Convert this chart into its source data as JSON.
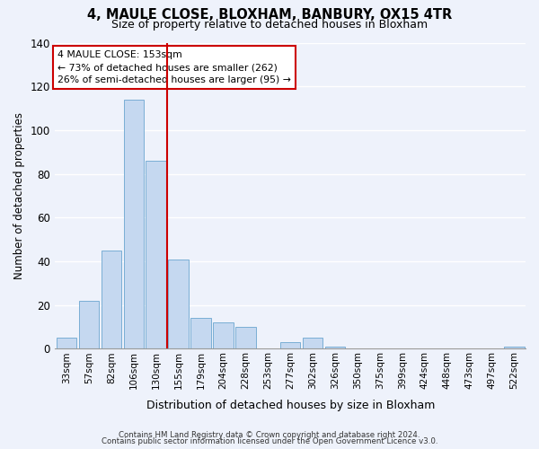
{
  "title": "4, MAULE CLOSE, BLOXHAM, BANBURY, OX15 4TR",
  "subtitle": "Size of property relative to detached houses in Bloxham",
  "xlabel": "Distribution of detached houses by size in Bloxham",
  "ylabel": "Number of detached properties",
  "bin_labels": [
    "33sqm",
    "57sqm",
    "82sqm",
    "106sqm",
    "130sqm",
    "155sqm",
    "179sqm",
    "204sqm",
    "228sqm",
    "253sqm",
    "277sqm",
    "302sqm",
    "326sqm",
    "350sqm",
    "375sqm",
    "399sqm",
    "424sqm",
    "448sqm",
    "473sqm",
    "497sqm",
    "522sqm"
  ],
  "bar_values": [
    5,
    22,
    45,
    114,
    86,
    41,
    14,
    12,
    10,
    0,
    3,
    5,
    1,
    0,
    0,
    0,
    0,
    0,
    0,
    0,
    1
  ],
  "bar_color": "#c5d8f0",
  "bar_edge_color": "#7aaed4",
  "marker_bin_index": 4,
  "marker_line_color": "#cc0000",
  "annotation_line1": "4 MAULE CLOSE: 153sqm",
  "annotation_line2": "← 73% of detached houses are smaller (262)",
  "annotation_line3": "26% of semi-detached houses are larger (95) →",
  "annotation_box_color": "#ffffff",
  "annotation_box_edge": "#cc0000",
  "ylim": [
    0,
    140
  ],
  "yticks": [
    0,
    20,
    40,
    60,
    80,
    100,
    120,
    140
  ],
  "footer_line1": "Contains HM Land Registry data © Crown copyright and database right 2024.",
  "footer_line2": "Contains public sector information licensed under the Open Government Licence v3.0.",
  "background_color": "#eef2fb",
  "grid_color": "#d0d8e8"
}
